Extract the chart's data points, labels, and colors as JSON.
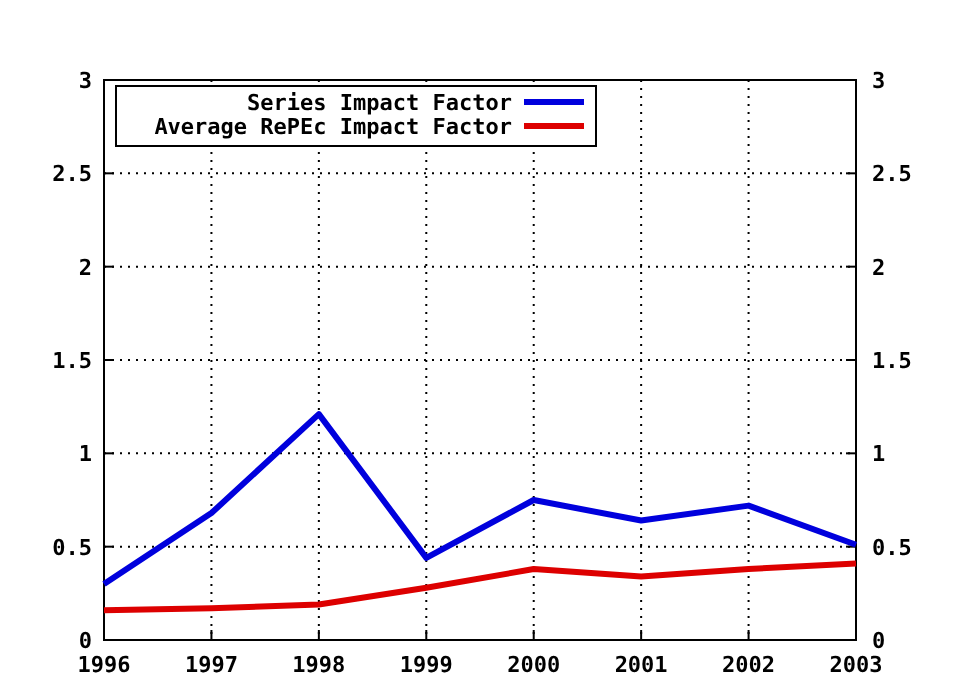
{
  "chart_data": {
    "type": "line",
    "categories": [
      "1996",
      "1997",
      "1998",
      "1999",
      "2000",
      "2001",
      "2002",
      "2003"
    ],
    "series": [
      {
        "name": "Series Impact Factor",
        "color": "#0000dd",
        "values": [
          0.3,
          0.68,
          1.21,
          0.44,
          0.75,
          0.64,
          0.72,
          0.51
        ]
      },
      {
        "name": "Average RePEc Impact Factor",
        "color": "#dd0000",
        "values": [
          0.16,
          0.17,
          0.19,
          0.28,
          0.38,
          0.34,
          0.38,
          0.41
        ]
      }
    ],
    "ylim": [
      0,
      3
    ],
    "yticks": [
      0,
      0.5,
      1,
      1.5,
      2,
      2.5,
      3
    ],
    "y2lim": [
      0,
      3
    ],
    "y2ticks": [
      0,
      0.5,
      1,
      1.5,
      2,
      2.5,
      3
    ],
    "grid": true,
    "legend": "top left",
    "line_style": "solid"
  }
}
